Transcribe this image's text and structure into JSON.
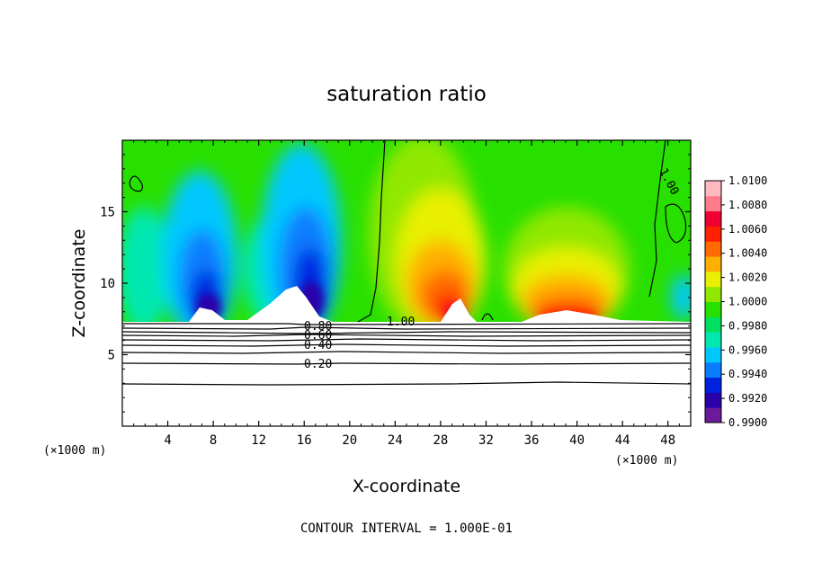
{
  "chart_data": {
    "type": "heatmap",
    "title": "saturation ratio",
    "xlabel": "X-coordinate",
    "ylabel": "Z-coordinate",
    "x_unit": "(×1000 m)",
    "y_unit": "(×1000 m)",
    "xlim": [
      0,
      50
    ],
    "ylim": [
      0,
      20
    ],
    "x_ticks": [
      "4",
      "8",
      "12",
      "16",
      "20",
      "24",
      "28",
      "32",
      "36",
      "40",
      "44",
      "48"
    ],
    "y_ticks": [
      "5",
      "10",
      "15"
    ],
    "colorbar": {
      "min": 0.99,
      "max": 1.01,
      "ticks": [
        "1.0100",
        "1.0080",
        "1.0060",
        "1.0040",
        "1.0020",
        "1.0000",
        "0.9980",
        "0.9960",
        "0.9940",
        "0.9920",
        "0.9900"
      ],
      "colors": [
        "#6a1a9a",
        "#2a00a8",
        "#0022e0",
        "#0a7dff",
        "#00c8ff",
        "#00e8b0",
        "#00e060",
        "#28e000",
        "#90e800",
        "#e8f000",
        "#ffb000",
        "#ff6a00",
        "#ff2000",
        "#f00030",
        "#ff7a8a",
        "#ffb8c0"
      ]
    },
    "contour_labels": [
      "0.80",
      "0.60",
      "0.40",
      "0.20",
      "1.00",
      "1.00"
    ],
    "contour_interval": "CONTOUR INTERVAL = 1.000E-01"
  }
}
